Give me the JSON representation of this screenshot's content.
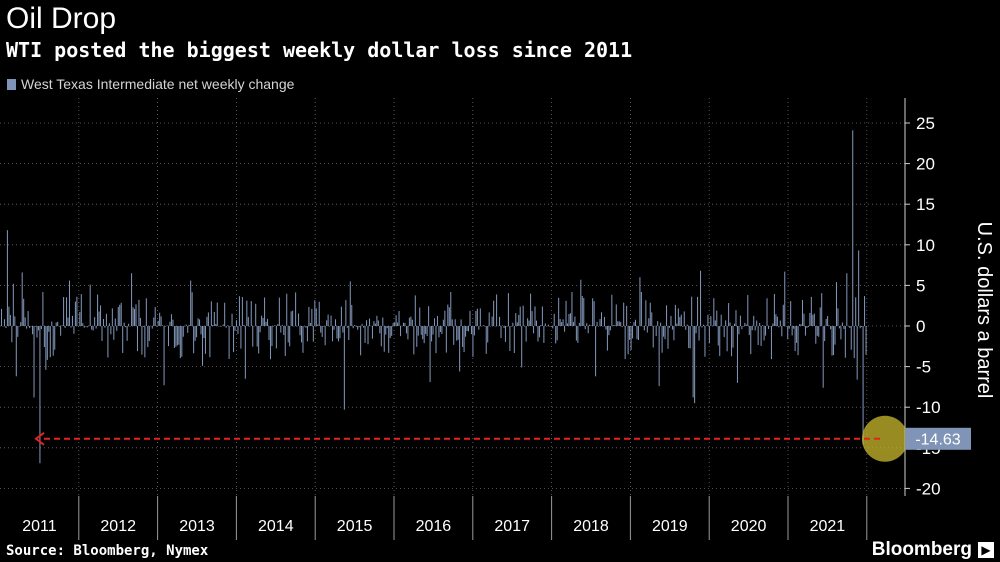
{
  "header": {
    "title": "Oil Drop",
    "subtitle": "WTI posted the biggest weekly dollar loss since 2011"
  },
  "footer": {
    "source": "Source: Bloomberg, Nymex",
    "brand": "Bloomberg"
  },
  "colors": {
    "bar": "#7f94b6",
    "highlight_circle": "#c9b92e",
    "arrow": "#e0241f",
    "grid": "#6a6a6a"
  },
  "chart_data": {
    "type": "bar",
    "title": "Oil Drop",
    "subtitle": "WTI posted the biggest weekly dollar loss since 2011",
    "ylabel": "U.S. dollars a barrel",
    "ylim": [
      -22,
      28
    ],
    "yticks": [
      25,
      20,
      15,
      10,
      5,
      0,
      -5,
      -10,
      -15,
      -20
    ],
    "grid": true,
    "legend": {
      "entries": [
        "West Texas Intermediate net weekly change"
      ],
      "placement": "top-left"
    },
    "x_years": [
      "2011",
      "2012",
      "2013",
      "2014",
      "2015",
      "2016",
      "2017",
      "2018",
      "2019",
      "2020",
      "2021"
    ],
    "series": [
      {
        "name": "West Texas Intermediate net weekly change",
        "frequency": "weekly",
        "notable_values": [
          {
            "period": "2011",
            "value": 11.8
          },
          {
            "period": "2011",
            "value": -16.9
          },
          {
            "period": "2014",
            "value": -10.3
          },
          {
            "period": "2020",
            "value": -9.5
          },
          {
            "period": "2022",
            "value": 24.1
          },
          {
            "period": "2022",
            "value": 9.3
          },
          {
            "period": "2022",
            "value": -14.63
          }
        ]
      }
    ],
    "annotations": [
      {
        "text": "-14.63",
        "type": "callout"
      }
    ]
  }
}
